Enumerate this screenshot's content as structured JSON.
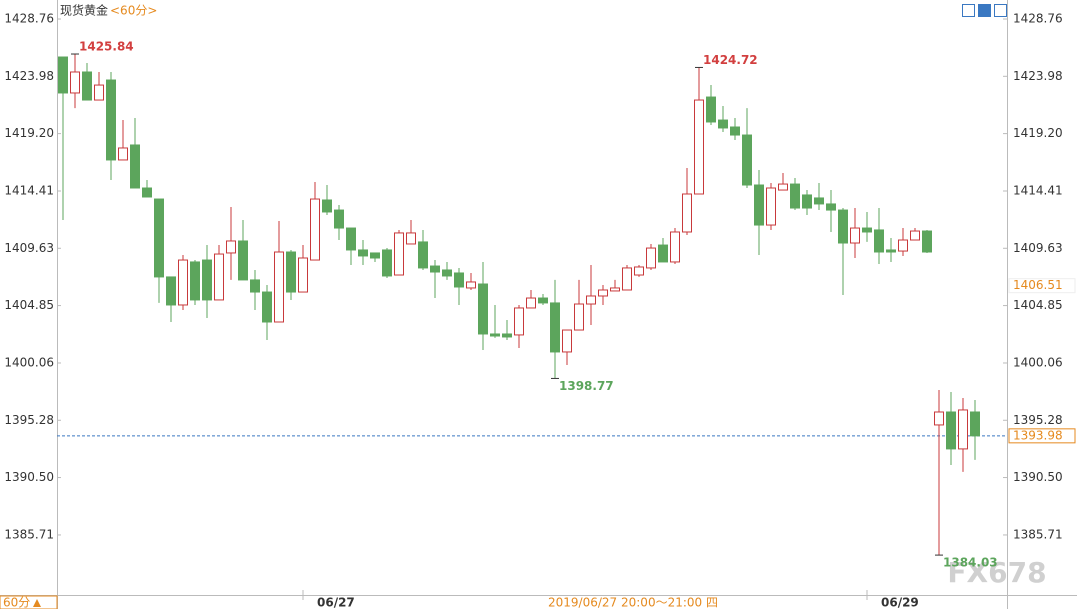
{
  "chart_data": {
    "type": "candlestick",
    "title": "现货黄金",
    "period": "<60分>",
    "period_button": "60分",
    "crosshair_label": "2019/06/27 20:00～21:00 四",
    "watermark": "FX678",
    "categories": [
      null,
      null,
      null,
      null,
      null,
      null,
      null,
      null,
      null,
      null,
      null,
      null,
      null,
      null,
      null,
      null,
      null,
      null,
      null,
      null,
      null,
      "06/27",
      null,
      null,
      null,
      null,
      null,
      null,
      null,
      null,
      null,
      null,
      null,
      null,
      null,
      null,
      null,
      null,
      null,
      null,
      null,
      null,
      null,
      null,
      null,
      null,
      null,
      null,
      null,
      null,
      null,
      null,
      null,
      null,
      null,
      null,
      null,
      null,
      null,
      null,
      null,
      null,
      null,
      null,
      null,
      null,
      null,
      null,
      "06/29",
      null,
      null,
      null,
      null,
      null,
      null,
      null,
      null
    ],
    "open": [
      1425.59,
      1422.59,
      1424.34,
      1422.0,
      1423.67,
      1417.0,
      1418.25,
      1414.66,
      1413.74,
      1407.24,
      1404.9,
      1408.49,
      1408.65,
      1405.32,
      1409.24,
      1410.24,
      1406.99,
      1405.98,
      1403.48,
      1409.32,
      1405.98,
      1408.65,
      1413.66,
      1412.82,
      1411.32,
      1409.49,
      1409.24,
      1409.49,
      1407.4,
      1409.99,
      1410.16,
      1408.15,
      1407.82,
      1407.57,
      1406.32,
      1406.65,
      1402.48,
      1402.48,
      1402.4,
      1404.65,
      1405.48,
      1405.07,
      1400.98,
      1402.81,
      1404.98,
      1405.65,
      1406.07,
      1406.15,
      1407.4,
      1407.99,
      1409.9,
      1408.49,
      1410.99,
      1414.16,
      1422.25,
      1420.33,
      1419.75,
      1419.08,
      1414.91,
      1411.57,
      1414.49,
      1414.99,
      1414.08,
      1413.83,
      1413.33,
      1412.82,
      1410.07,
      1411.32,
      1411.16,
      1409.49,
      1409.4,
      1410.32,
      1411.07,
      1394.89,
      1395.97,
      1392.89,
      1395.97
    ],
    "high": [
      1425.59,
      1425.84,
      1425.09,
      1424.34,
      1424.34,
      1420.33,
      1420.5,
      1415.33,
      1413.74,
      1407.24,
      1409.07,
      1408.65,
      1409.9,
      1409.9,
      1413.08,
      1411.99,
      1407.82,
      1406.57,
      1411.91,
      1409.49,
      1409.9,
      1415.16,
      1414.91,
      1413.24,
      1411.32,
      1410.32,
      1409.24,
      1409.65,
      1411.16,
      1411.99,
      1411.16,
      1408.65,
      1408.49,
      1407.99,
      1407.57,
      1408.49,
      1404.9,
      1403.65,
      1404.9,
      1406.15,
      1405.82,
      1406.99,
      1402.81,
      1406.99,
      1408.24,
      1406.57,
      1406.99,
      1408.24,
      1408.24,
      1409.99,
      1410.49,
      1411.32,
      1416.33,
      1424.72,
      1423.25,
      1421.5,
      1420.5,
      1421.33,
      1416.16,
      1415.08,
      1415.91,
      1415.49,
      1414.49,
      1415.08,
      1414.49,
      1412.99,
      1412.99,
      1412.66,
      1412.99,
      1410.49,
      1411.32,
      1411.32,
      1411.16,
      1397.81,
      1397.64,
      1397.14,
      1396.97
    ],
    "low": [
      1411.99,
      1421.33,
      1422.0,
      1422.0,
      1415.33,
      1417.0,
      1414.66,
      1413.91,
      1405.07,
      1403.48,
      1404.48,
      1404.9,
      1403.81,
      1405.32,
      1406.99,
      1406.99,
      1404.48,
      1401.98,
      1403.48,
      1405.32,
      1405.98,
      1408.65,
      1412.41,
      1410.32,
      1408.24,
      1408.24,
      1408.49,
      1407.15,
      1407.4,
      1409.99,
      1407.82,
      1405.48,
      1406.99,
      1404.9,
      1406.15,
      1401.14,
      1402.15,
      1401.98,
      1401.31,
      1404.65,
      1404.9,
      1398.77,
      1399.89,
      1402.81,
      1403.23,
      1404.9,
      1406.07,
      1406.15,
      1407.24,
      1407.82,
      1408.49,
      1408.32,
      1410.74,
      1414.16,
      1419.92,
      1419.33,
      1418.67,
      1414.66,
      1409.07,
      1411.16,
      1414.49,
      1412.82,
      1412.41,
      1412.82,
      1410.99,
      1405.73,
      1408.82,
      1410.16,
      1408.32,
      1408.49,
      1408.99,
      1410.32,
      1409.24,
      1384.03,
      1391.55,
      1390.97,
      1391.97
    ],
    "close": [
      1422.59,
      1424.34,
      1422.0,
      1423.25,
      1417.0,
      1418.0,
      1414.66,
      1413.91,
      1407.24,
      1404.9,
      1408.65,
      1405.32,
      1405.32,
      1409.15,
      1410.24,
      1406.99,
      1405.98,
      1403.48,
      1409.32,
      1405.98,
      1408.82,
      1413.74,
      1412.66,
      1411.32,
      1409.49,
      1408.99,
      1408.82,
      1407.32,
      1410.91,
      1410.91,
      1407.99,
      1407.65,
      1407.32,
      1406.4,
      1406.82,
      1402.48,
      1402.31,
      1402.23,
      1404.65,
      1405.48,
      1405.07,
      1400.98,
      1402.81,
      1404.98,
      1405.65,
      1406.15,
      1406.32,
      1407.99,
      1408.07,
      1409.65,
      1408.49,
      1410.99,
      1414.16,
      1422.0,
      1420.17,
      1419.67,
      1419.08,
      1414.91,
      1411.57,
      1414.66,
      1414.99,
      1412.99,
      1412.99,
      1413.33,
      1412.82,
      1410.07,
      1411.32,
      1410.99,
      1409.32,
      1409.32,
      1410.32,
      1411.07,
      1409.32,
      1395.97,
      1392.89,
      1396.14,
      1393.98
    ],
    "up_color": "#c8393b",
    "down_color": "#5ca55c",
    "annotations": [
      {
        "value": 1425.84,
        "kind": "high",
        "color": "#d23f3f"
      },
      {
        "value": 1424.72,
        "kind": "high",
        "color": "#d23f3f"
      },
      {
        "value": 1398.77,
        "kind": "low",
        "color": "#5ca55c"
      },
      {
        "value": 1384.03,
        "kind": "low",
        "color": "#5ca55c"
      }
    ],
    "reference_price": 1406.51,
    "current_price": 1393.98,
    "ylim": [
      1380.7,
      1429.93
    ],
    "yticks": [
      1428.76,
      1423.98,
      {
        "value": 1419.2,
        "label": "1419.20"
      },
      1414.41,
      1409.63,
      1404.85,
      1400.06,
      1395.28,
      {
        "value": 1390.5,
        "label": "1390.50"
      },
      1385.71
    ]
  }
}
